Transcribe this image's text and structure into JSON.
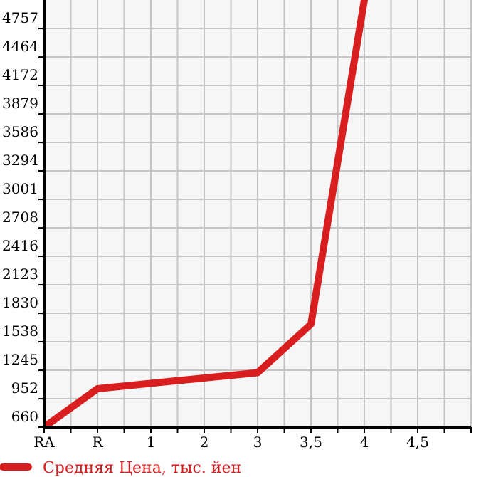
{
  "chart_data": {
    "type": "line",
    "categories": [
      "RA",
      "R",
      "1",
      "2",
      "3",
      "3,5",
      "4",
      "4,5"
    ],
    "series": [
      {
        "name": "Средняя Цена, тыс. йен",
        "color": "#d81e1e",
        "values": [
          660,
          1055,
          null,
          null,
          1220,
          1718,
          5050,
          null
        ]
      }
    ],
    "ylim": [
      660,
      5050
    ],
    "yticks": [
      660,
      952,
      1245,
      1538,
      1830,
      2123,
      2416,
      2708,
      3001,
      3294,
      3586,
      3879,
      4172,
      4464,
      4757
    ],
    "grid": true,
    "legend": "bottom",
    "marker": "none",
    "line_style": "solid"
  }
}
